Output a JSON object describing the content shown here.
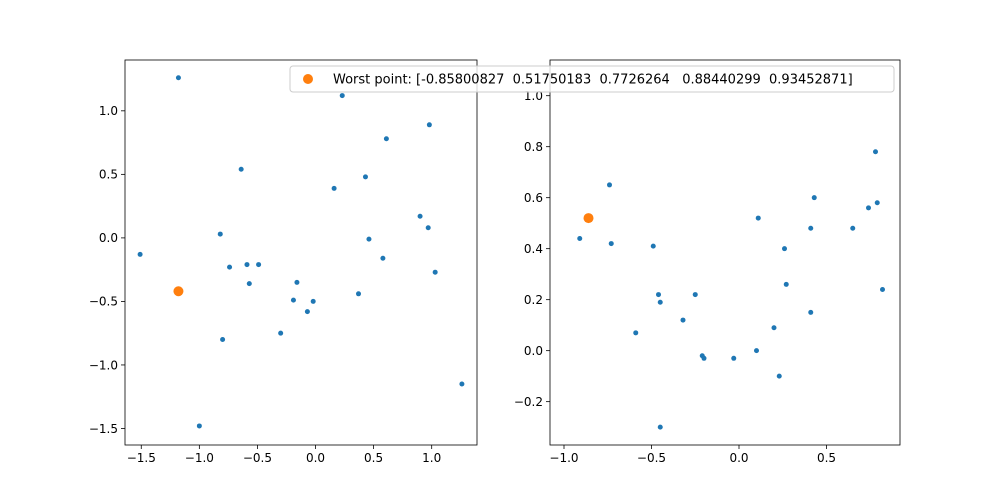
{
  "chart_data": [
    {
      "type": "scatter",
      "xlim": [
        -1.64,
        1.39
      ],
      "ylim": [
        -1.63,
        1.4
      ],
      "xticks": [
        -1.5,
        -1.0,
        -0.5,
        0.0,
        0.5,
        1.0
      ],
      "xtick_labels": [
        "−1.5",
        "−1.0",
        "−0.5",
        "0.0",
        "0.5",
        "1.0"
      ],
      "yticks": [
        -1.5,
        -1.0,
        -0.5,
        0.0,
        0.5,
        1.0
      ],
      "ytick_labels": [
        "−1.5",
        "−1.0",
        "−0.5",
        "0.0",
        "0.5",
        "1.0"
      ],
      "series": [
        {
          "color": "#1f77b4",
          "marker_size": "small",
          "x": [
            -1.18,
            -1.51,
            -0.64,
            0.23,
            0.61,
            0.98,
            0.16,
            0.43,
            -0.82,
            -0.59,
            -0.74,
            -0.49,
            0.46,
            0.9,
            0.97,
            -0.57,
            -0.16,
            0.58,
            1.03,
            -0.19,
            -0.02,
            -0.07,
            0.37,
            -0.3,
            -0.8,
            -1.0,
            1.26
          ],
          "y": [
            1.26,
            -0.13,
            0.54,
            1.12,
            0.78,
            0.89,
            0.39,
            0.48,
            0.03,
            -0.21,
            -0.23,
            -0.21,
            -0.01,
            0.17,
            0.08,
            -0.36,
            -0.35,
            -0.16,
            -0.27,
            -0.49,
            -0.5,
            -0.58,
            -0.44,
            -0.75,
            -0.8,
            -1.48,
            -1.15
          ]
        },
        {
          "color": "#ff7f0e",
          "marker_size": "large",
          "x": [
            -1.18
          ],
          "y": [
            -0.42
          ]
        }
      ]
    },
    {
      "type": "scatter",
      "xlim": [
        -1.08,
        0.92
      ],
      "ylim": [
        -0.37,
        1.14
      ],
      "xticks": [
        -1.0,
        -0.5,
        0.0,
        0.5
      ],
      "xtick_labels": [
        "−1.0",
        "−0.5",
        "0.0",
        "0.5"
      ],
      "yticks": [
        -0.2,
        0.0,
        0.2,
        0.4,
        0.6,
        0.8,
        1.0
      ],
      "ytick_labels": [
        "−0.2",
        "0.0",
        "0.2",
        "0.4",
        "0.6",
        "0.8",
        "1.0"
      ],
      "series": [
        {
          "color": "#1f77b4",
          "marker_size": "small",
          "x": [
            -0.74,
            -0.91,
            -0.73,
            -0.49,
            -0.46,
            -0.45,
            -0.59,
            -0.32,
            -0.25,
            -0.21,
            -0.2,
            -0.03,
            0.1,
            0.11,
            0.2,
            0.23,
            0.26,
            0.27,
            0.41,
            0.41,
            0.43,
            0.65,
            0.74,
            0.78,
            0.79,
            0.82,
            -0.45
          ],
          "y": [
            0.65,
            0.44,
            0.42,
            0.41,
            0.22,
            0.19,
            0.07,
            0.12,
            0.22,
            -0.02,
            -0.03,
            -0.03,
            0.0,
            0.52,
            0.09,
            -0.1,
            0.4,
            0.26,
            0.15,
            0.48,
            0.6,
            0.48,
            0.56,
            0.78,
            0.58,
            0.24,
            -0.3
          ]
        },
        {
          "color": "#ff7f0e",
          "marker_size": "large",
          "x": [
            -0.86
          ],
          "y": [
            0.52
          ]
        }
      ]
    }
  ],
  "legend": {
    "label": "Worst point: [-0.85800827  0.51750183  0.7726264   0.88440299  0.93452871]",
    "color": "#ff7f0e",
    "placement": "top, overlapping both subplots"
  }
}
